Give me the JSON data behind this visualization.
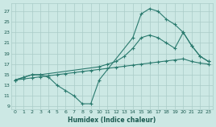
{
  "xlabel": "Humidex (Indice chaleur)",
  "bg_color": "#cce8e4",
  "line_color": "#2a7a6e",
  "grid_color": "#aaccc8",
  "xlim": [
    -0.5,
    23.5
  ],
  "ylim": [
    8.5,
    28.5
  ],
  "xticks": [
    0,
    1,
    2,
    3,
    4,
    5,
    6,
    7,
    8,
    9,
    10,
    11,
    12,
    13,
    14,
    15,
    16,
    17,
    18,
    19,
    20,
    21,
    22,
    23
  ],
  "yticks": [
    9,
    11,
    13,
    15,
    17,
    19,
    21,
    23,
    25,
    27
  ],
  "line1_x": [
    0,
    1,
    2,
    3,
    4,
    5,
    6,
    7,
    8,
    9,
    10,
    14,
    15,
    16,
    17,
    18,
    19,
    20,
    21,
    22,
    23
  ],
  "line1_y": [
    14,
    14.5,
    15,
    15,
    14.5,
    13,
    12,
    11,
    9.5,
    9.5,
    14,
    22,
    26.5,
    27.5,
    27,
    25.5,
    24.5,
    23,
    20.5,
    18.5,
    17.5
  ],
  "line2_x": [
    0,
    1,
    2,
    3,
    4,
    5,
    6,
    7,
    8,
    9,
    10,
    11,
    12,
    13,
    14,
    15,
    16,
    17,
    18,
    19,
    20,
    21,
    22,
    23
  ],
  "line2_y": [
    14,
    14.2,
    14.4,
    14.6,
    14.8,
    15,
    15.2,
    15.4,
    15.6,
    15.8,
    16,
    16.2,
    16.4,
    16.6,
    16.8,
    17,
    17.2,
    17.4,
    17.6,
    17.8,
    18.0,
    17.5,
    17.2,
    17.0
  ],
  "line3_x": [
    0,
    1,
    2,
    3,
    10,
    11,
    12,
    13,
    14,
    15,
    16,
    17,
    18,
    19,
    20,
    21,
    22,
    23
  ],
  "line3_y": [
    14,
    14.5,
    15,
    15,
    16.5,
    17,
    17.5,
    18.5,
    20,
    22,
    22.5,
    22,
    21,
    20,
    23,
    20.5,
    18.5,
    17.5
  ]
}
